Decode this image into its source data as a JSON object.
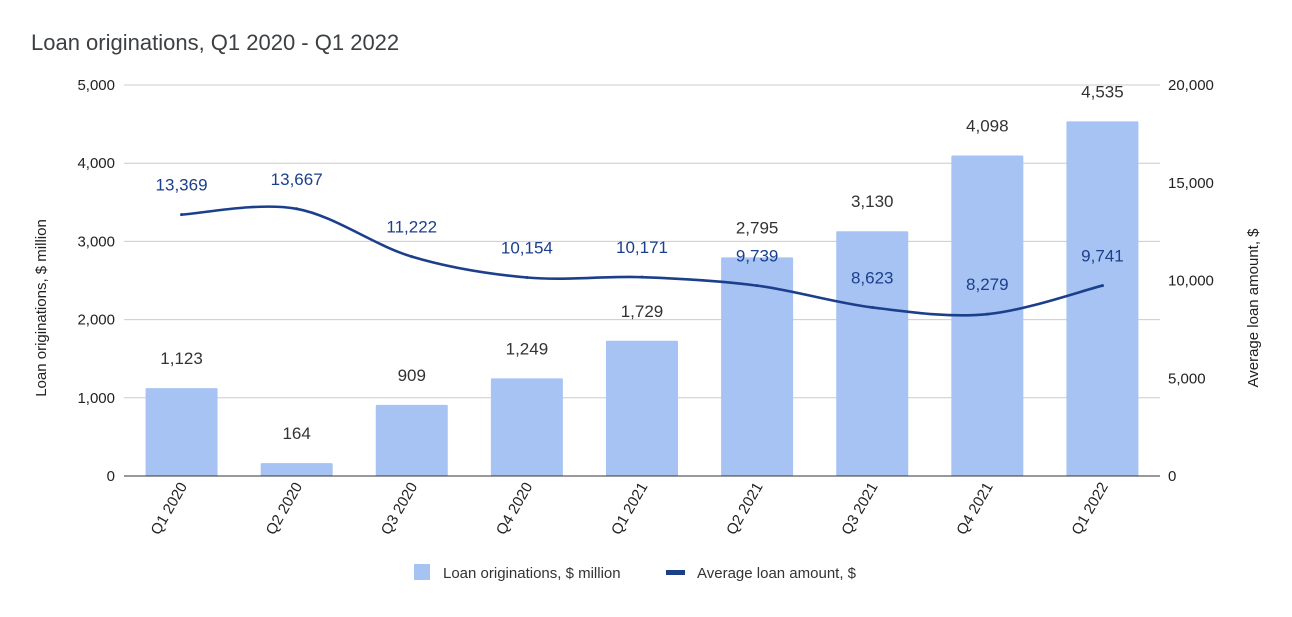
{
  "chart_data": {
    "type": "bar",
    "title": "Loan originations, Q1 2020 - Q1 2022",
    "categories": [
      "Q1 2020",
      "Q2 2020",
      "Q3 2020",
      "Q4 2020",
      "Q1 2021",
      "Q2 2021",
      "Q3 2021",
      "Q4 2021",
      "Q1 2022"
    ],
    "series": [
      {
        "name": "Loan originations, $ million",
        "type": "bar",
        "axis": "left",
        "color": "#a6c3f3",
        "values": [
          1123,
          164,
          909,
          1249,
          1729,
          2795,
          3130,
          4098,
          4535
        ],
        "labels": [
          "1,123",
          "164",
          "909",
          "1,249",
          "1,729",
          "2,795",
          "3,130",
          "4,098",
          "4,535"
        ]
      },
      {
        "name": "Average loan amount, $",
        "type": "line",
        "axis": "right",
        "color": "#1c3f8c",
        "values": [
          13369,
          13667,
          11222,
          10154,
          10171,
          9739,
          8623,
          8279,
          9741
        ],
        "labels": [
          "13,369",
          "13,667",
          "11,222",
          "10,154",
          "10,171",
          "9,739",
          "8,623",
          "8,279",
          "9,741"
        ]
      }
    ],
    "ylabel": "Loan originations, $ million",
    "ylabel_right": "Average loan amount, $",
    "ylim": [
      0,
      5000
    ],
    "ylim_right": [
      0,
      20000
    ],
    "yticks": [
      0,
      1000,
      2000,
      3000,
      4000,
      5000
    ],
    "yticks_labels": [
      "0",
      "1,000",
      "2,000",
      "3,000",
      "4,000",
      "5,000"
    ],
    "yticks_right": [
      0,
      5000,
      10000,
      15000,
      20000
    ],
    "yticks_right_labels": [
      "0",
      "5,000",
      "10,000",
      "15,000",
      "20,000"
    ],
    "grid": true,
    "legend": "bottom"
  }
}
